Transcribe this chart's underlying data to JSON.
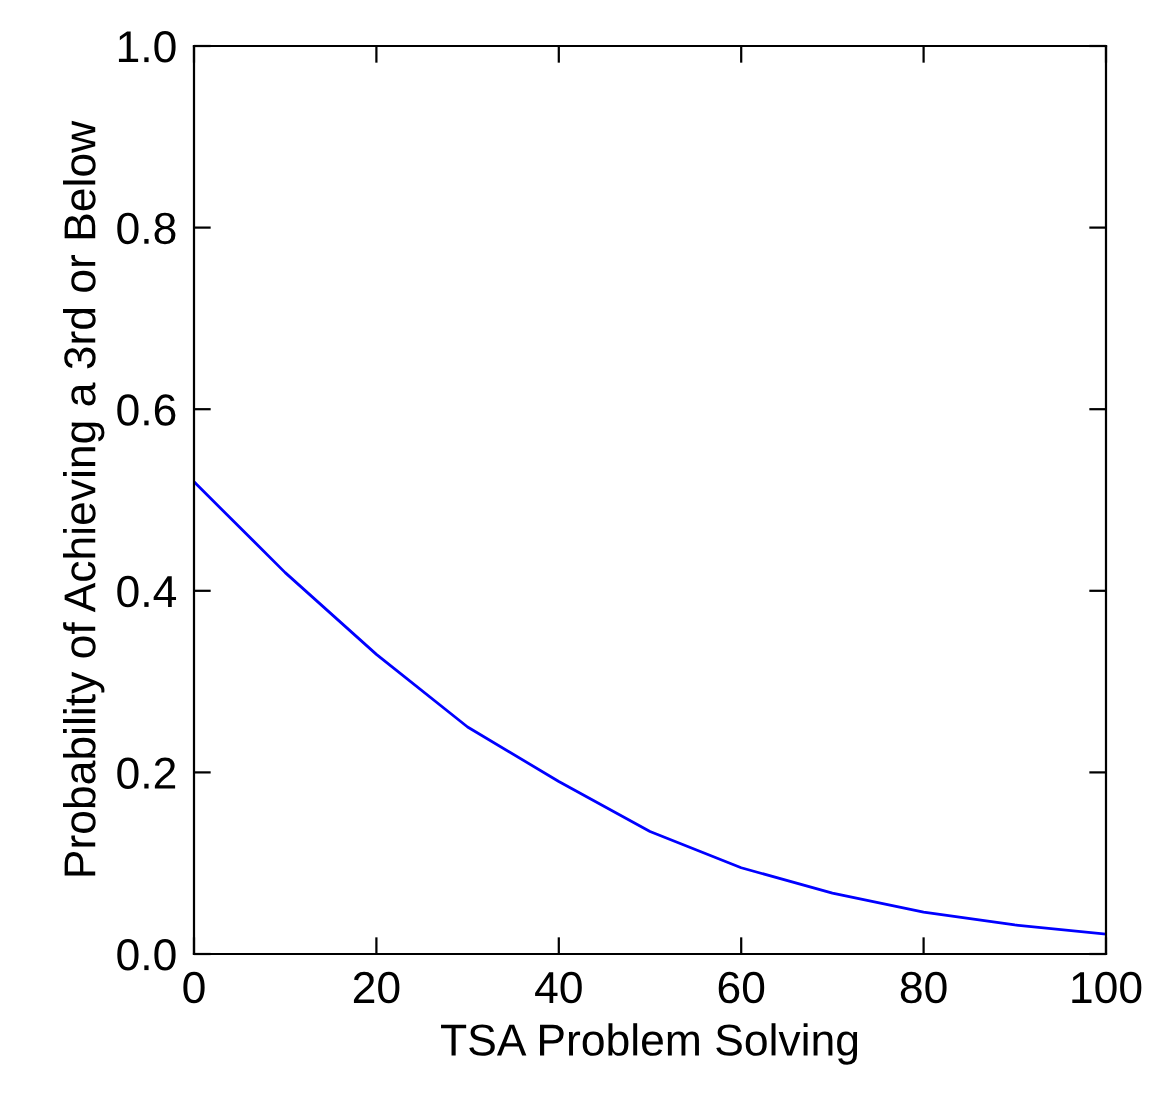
{
  "chart_data": {
    "type": "line",
    "xlabel": "TSA Problem Solving",
    "ylabel": "Probability of Achieving a 3rd or Below",
    "x": [
      0,
      10,
      20,
      30,
      40,
      50,
      60,
      70,
      80,
      90,
      100
    ],
    "series": [
      {
        "color": "#0000ff",
        "values": [
          0.52,
          0.42,
          0.33,
          0.25,
          0.19,
          0.135,
          0.095,
          0.067,
          0.046,
          0.032,
          0.022
        ]
      }
    ],
    "xlim": [
      0,
      100
    ],
    "ylim": [
      0,
      1.0
    ],
    "xticks": [
      0,
      20,
      40,
      60,
      80,
      100
    ],
    "yticks": [
      {
        "value": 0,
        "label": "0.0"
      },
      0.2,
      0.4,
      0.6,
      0.8,
      {
        "value": 1.0,
        "label": "1.0"
      }
    ],
    "grid": false,
    "legend": false,
    "marker": "none",
    "line_style": "solid"
  }
}
